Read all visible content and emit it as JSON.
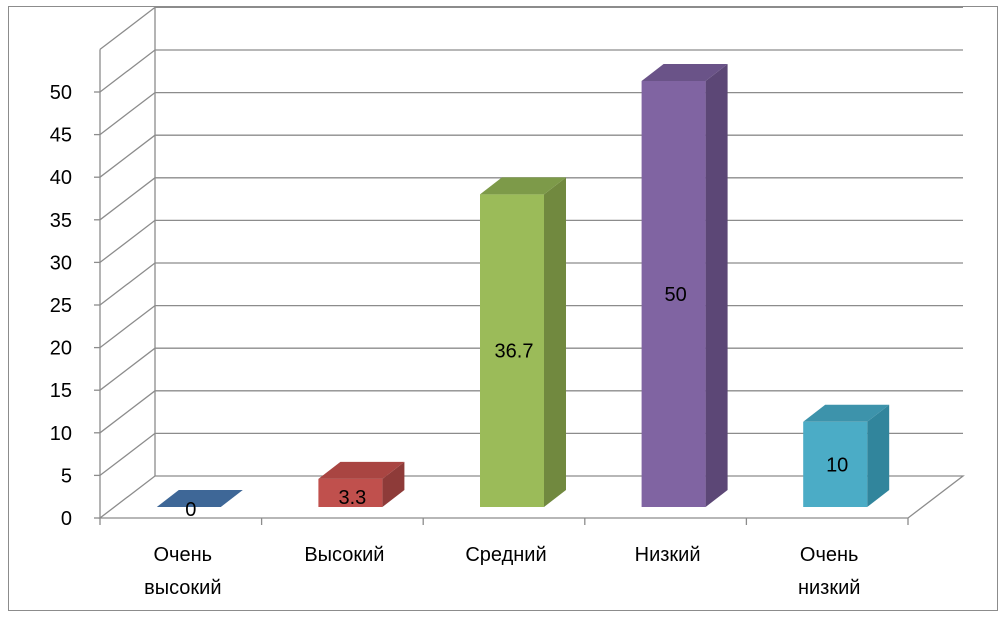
{
  "chart_data": {
    "type": "bar",
    "three_d": true,
    "categories": [
      [
        "Очень",
        "высокий"
      ],
      [
        "Высокий"
      ],
      [
        "Средний"
      ],
      [
        "Низкий"
      ],
      [
        "Очень",
        "низкий"
      ]
    ],
    "values": [
      0,
      3.3,
      36.7,
      50,
      10
    ],
    "data_labels": [
      "0",
      "3.3",
      "36.7",
      "50",
      "10"
    ],
    "colors": {
      "front": [
        "#4f81bd",
        "#c0504d",
        "#9bbb59",
        "#8064a2",
        "#4bacc6"
      ],
      "side": [
        "#385d8a",
        "#8e3b39",
        "#71893f",
        "#5c4776",
        "#31859c"
      ],
      "top": [
        "#3e6797",
        "#a94542",
        "#7d9a49",
        "#6a5388",
        "#3d93ab"
      ]
    },
    "y_ticks": [
      "0",
      "5",
      "10",
      "15",
      "20",
      "25",
      "30",
      "35",
      "40",
      "45",
      "50"
    ],
    "ylim": [
      0,
      50
    ],
    "gridlines": true,
    "title": "",
    "xlabel": "",
    "ylabel": "",
    "legend": "none"
  }
}
